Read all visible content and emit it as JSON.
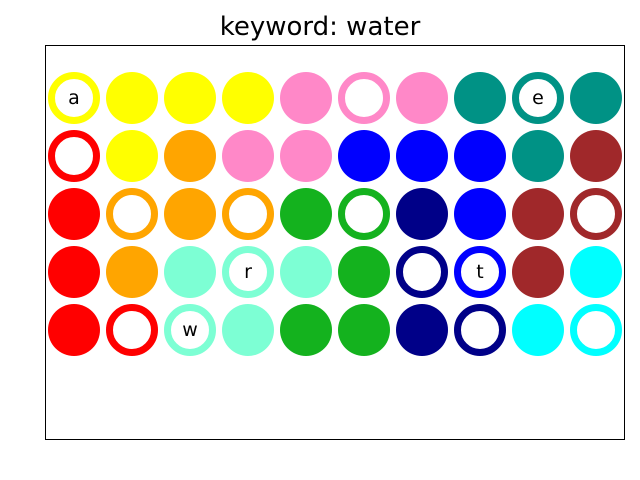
{
  "title": "keyword: water",
  "colors": {
    "Y": "#ffff00",
    "P": "#ff88c8",
    "T": "#009285",
    "R": "#ff0000",
    "O": "#ffa500",
    "B": "#0000ff",
    "M": "#a0282a",
    "G": "#14b21e",
    "N": "#000088",
    "A": "#7dffd4",
    "C": "#00ffff"
  },
  "grid": [
    [
      [
        "Y",
        "ring",
        "a"
      ],
      [
        "Y",
        "fill",
        ""
      ],
      [
        "Y",
        "fill",
        ""
      ],
      [
        "Y",
        "fill",
        ""
      ],
      [
        "P",
        "fill",
        ""
      ],
      [
        "P",
        "ring",
        ""
      ],
      [
        "P",
        "fill",
        ""
      ],
      [
        "T",
        "fill",
        ""
      ],
      [
        "T",
        "ring",
        "e"
      ],
      [
        "T",
        "fill",
        ""
      ]
    ],
    [
      [
        "R",
        "ring",
        ""
      ],
      [
        "Y",
        "fill",
        ""
      ],
      [
        "O",
        "fill",
        ""
      ],
      [
        "P",
        "fill",
        ""
      ],
      [
        "P",
        "fill",
        ""
      ],
      [
        "B",
        "fill",
        ""
      ],
      [
        "B",
        "fill",
        ""
      ],
      [
        "B",
        "fill",
        ""
      ],
      [
        "T",
        "fill",
        ""
      ],
      [
        "M",
        "fill",
        ""
      ]
    ],
    [
      [
        "R",
        "fill",
        ""
      ],
      [
        "O",
        "ring",
        ""
      ],
      [
        "O",
        "fill",
        ""
      ],
      [
        "O",
        "ring",
        ""
      ],
      [
        "G",
        "fill",
        ""
      ],
      [
        "G",
        "ring",
        ""
      ],
      [
        "N",
        "fill",
        ""
      ],
      [
        "B",
        "fill",
        ""
      ],
      [
        "M",
        "fill",
        ""
      ],
      [
        "M",
        "ring",
        ""
      ]
    ],
    [
      [
        "R",
        "fill",
        ""
      ],
      [
        "O",
        "fill",
        ""
      ],
      [
        "A",
        "fill",
        ""
      ],
      [
        "A",
        "ring",
        "r"
      ],
      [
        "A",
        "fill",
        ""
      ],
      [
        "G",
        "fill",
        ""
      ],
      [
        "N",
        "ring",
        ""
      ],
      [
        "B",
        "ring",
        "t"
      ],
      [
        "M",
        "fill",
        ""
      ],
      [
        "C",
        "fill",
        ""
      ]
    ],
    [
      [
        "R",
        "fill",
        ""
      ],
      [
        "R",
        "ring",
        ""
      ],
      [
        "A",
        "ring",
        "w"
      ],
      [
        "A",
        "fill",
        ""
      ],
      [
        "G",
        "fill",
        ""
      ],
      [
        "G",
        "fill",
        ""
      ],
      [
        "N",
        "fill",
        ""
      ],
      [
        "N",
        "ring",
        ""
      ],
      [
        "C",
        "fill",
        ""
      ],
      [
        "C",
        "ring",
        ""
      ]
    ]
  ]
}
